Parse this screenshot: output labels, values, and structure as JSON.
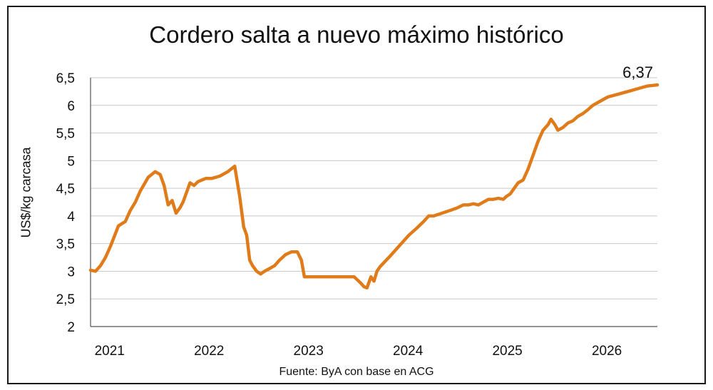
{
  "chart_data": {
    "type": "line",
    "title": "Cordero salta a nuevo máximo histórico",
    "ylabel": "US$/kg carcasa",
    "xlabel": "",
    "source": "Fuente: ByA con base en ACG",
    "ylim": [
      2,
      6.5
    ],
    "xlim": [
      2021,
      2026.7
    ],
    "yticks": [
      "2",
      "2,5",
      "3",
      "3,5",
      "4",
      "4,5",
      "5",
      "5,5",
      "6",
      "6,5"
    ],
    "xticks": [
      "2021",
      "2022",
      "2023",
      "2024",
      "2025",
      "2026"
    ],
    "grid": true,
    "line_color": "#E07B1A",
    "annotation": {
      "text": "6,37",
      "x": 2026.7,
      "y": 6.37
    },
    "series": [
      {
        "x": [
          2021.0,
          2021.05,
          2021.1,
          2021.15,
          2021.2,
          2021.28,
          2021.35,
          2021.4,
          2021.45,
          2021.5,
          2021.58,
          2021.65,
          2021.7,
          2021.74,
          2021.78,
          2021.82,
          2021.86,
          2021.9,
          2021.93,
          2021.96,
          2022.0,
          2022.04,
          2022.08,
          2022.12,
          2022.16,
          2022.22,
          2022.3,
          2022.38,
          2022.45,
          2022.5,
          2022.54,
          2022.57,
          2022.6,
          2022.63,
          2022.67,
          2022.71,
          2022.75,
          2022.8,
          2022.85,
          2022.9,
          2022.96,
          2023.02,
          2023.08,
          2023.12,
          2023.15,
          2023.18,
          2023.2,
          2023.3,
          2023.5,
          2023.65,
          2023.68,
          2023.72,
          2023.75,
          2023.78,
          2023.82,
          2023.85,
          2023.88,
          2023.91,
          2024.0,
          2024.1,
          2024.2,
          2024.28,
          2024.35,
          2024.4,
          2024.45,
          2024.55,
          2024.68,
          2024.75,
          2024.8,
          2024.85,
          2024.9,
          2024.95,
          2025.0,
          2025.05,
          2025.1,
          2025.15,
          2025.18,
          2025.22,
          2025.26,
          2025.3,
          2025.35,
          2025.4,
          2025.45,
          2025.5,
          2025.55,
          2025.6,
          2025.63,
          2025.67,
          2025.7,
          2025.75,
          2025.8,
          2025.85,
          2025.9,
          2025.95,
          2026.0,
          2026.05,
          2026.1,
          2026.15,
          2026.2,
          2026.3,
          2026.4,
          2026.5,
          2026.6,
          2026.7
        ],
        "y": [
          3.02,
          3.0,
          3.1,
          3.25,
          3.45,
          3.82,
          3.9,
          4.1,
          4.25,
          4.45,
          4.7,
          4.8,
          4.75,
          4.55,
          4.2,
          4.28,
          4.05,
          4.15,
          4.25,
          4.4,
          4.6,
          4.55,
          4.62,
          4.65,
          4.68,
          4.68,
          4.72,
          4.8,
          4.9,
          4.35,
          3.8,
          3.65,
          3.2,
          3.1,
          3.0,
          2.95,
          3.0,
          3.05,
          3.1,
          3.2,
          3.3,
          3.35,
          3.35,
          3.2,
          2.9,
          2.9,
          2.9,
          2.9,
          2.9,
          2.9,
          2.85,
          2.78,
          2.72,
          2.7,
          2.9,
          2.82,
          3.0,
          3.08,
          3.25,
          3.45,
          3.65,
          3.78,
          3.9,
          4.0,
          4.0,
          4.06,
          4.14,
          4.2,
          4.2,
          4.22,
          4.2,
          4.25,
          4.3,
          4.3,
          4.32,
          4.3,
          4.35,
          4.4,
          4.5,
          4.6,
          4.65,
          4.85,
          5.1,
          5.35,
          5.55,
          5.65,
          5.75,
          5.65,
          5.55,
          5.6,
          5.68,
          5.72,
          5.8,
          5.85,
          5.92,
          6.0,
          6.05,
          6.1,
          6.15,
          6.2,
          6.25,
          6.3,
          6.35,
          6.37
        ]
      }
    ]
  }
}
